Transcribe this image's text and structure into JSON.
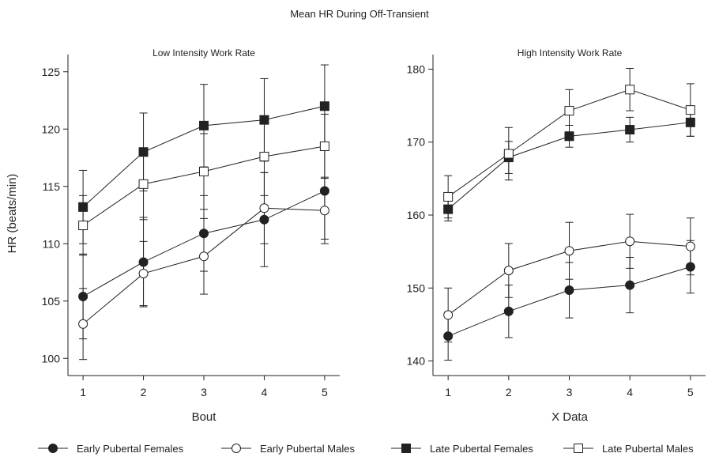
{
  "figure": {
    "title": "Mean HR During Off-Transient",
    "colors": {
      "ink": "#222222",
      "marker_face_open": "#ffffff",
      "background": "#ffffff"
    }
  },
  "legend": {
    "placement": "bottom",
    "entries": [
      {
        "label": "Early Pubertal Females",
        "marker": "filled-circle"
      },
      {
        "label": "Early Pubertal Males",
        "marker": "open-circle"
      },
      {
        "label": "Late Pubertal Females",
        "marker": "filled-square"
      },
      {
        "label": "Late Pubertal Males",
        "marker": "open-square"
      }
    ]
  },
  "chart_data": [
    {
      "type": "line",
      "title": "Low Intensity Work Rate",
      "xlabel": "Bout",
      "ylabel": "HR (beats/min)",
      "x": [
        1,
        2,
        3,
        4,
        5
      ],
      "xticks": [
        "1",
        "2",
        "3",
        "4",
        "5"
      ],
      "xlim": [
        0.75,
        5.25
      ],
      "ylim": [
        98.5,
        126.5
      ],
      "yticks": [
        "100",
        "105",
        "110",
        "115",
        "120",
        "125"
      ],
      "ytick_values": [
        100,
        105,
        110,
        115,
        120,
        125
      ],
      "grid": false,
      "series": [
        {
          "name": "Early Pubertal Females",
          "marker": "filled-circle",
          "values": [
            105.4,
            108.4,
            110.9,
            112.1,
            114.6
          ],
          "error": [
            3.7,
            3.9,
            3.3,
            4.1,
            4.2
          ]
        },
        {
          "name": "Early Pubertal Males",
          "marker": "open-circle",
          "values": [
            103.0,
            107.4,
            108.9,
            113.1,
            112.9
          ],
          "error": [
            3.1,
            2.8,
            3.3,
            3.1,
            2.9
          ]
        },
        {
          "name": "Late Pubertal Females",
          "marker": "filled-square",
          "values": [
            113.2,
            118.0,
            120.3,
            120.8,
            122.0
          ],
          "error": [
            3.2,
            3.4,
            3.6,
            3.6,
            3.6
          ]
        },
        {
          "name": "Late Pubertal Males",
          "marker": "open-square",
          "values": [
            111.6,
            115.2,
            116.3,
            117.6,
            118.5
          ],
          "error": [
            2.6,
            3.1,
            3.3,
            3.4,
            2.8
          ]
        }
      ]
    },
    {
      "type": "line",
      "title": "High Intensity Work Rate",
      "xlabel": "X Data",
      "ylabel": "",
      "x": [
        1,
        2,
        3,
        4,
        5
      ],
      "xticks": [
        "1",
        "2",
        "3",
        "4",
        "5"
      ],
      "xlim": [
        0.75,
        5.25
      ],
      "ylim": [
        138,
        182
      ],
      "yticks": [
        "140",
        "150",
        "160",
        "170",
        "180"
      ],
      "ytick_values": [
        140,
        150,
        160,
        170,
        180
      ],
      "grid": false,
      "series": [
        {
          "name": "Early Pubertal Females",
          "marker": "filled-circle",
          "values": [
            143.4,
            146.8,
            149.7,
            150.4,
            152.9
          ],
          "error": [
            3.3,
            3.6,
            3.8,
            3.8,
            3.6
          ]
        },
        {
          "name": "Early Pubertal Males",
          "marker": "open-circle",
          "values": [
            146.3,
            152.4,
            155.1,
            156.4,
            155.7
          ],
          "error": [
            3.7,
            3.7,
            3.9,
            3.7,
            3.9
          ]
        },
        {
          "name": "Late Pubertal Females",
          "marker": "filled-square",
          "values": [
            160.8,
            167.9,
            170.8,
            171.7,
            172.7
          ],
          "error": [
            1.6,
            2.2,
            1.5,
            1.7,
            1.9
          ]
        },
        {
          "name": "Late Pubertal Males",
          "marker": "open-square",
          "values": [
            162.5,
            168.4,
            174.3,
            177.2,
            174.4
          ],
          "error": [
            2.9,
            3.6,
            2.9,
            2.9,
            3.6
          ]
        }
      ]
    }
  ]
}
